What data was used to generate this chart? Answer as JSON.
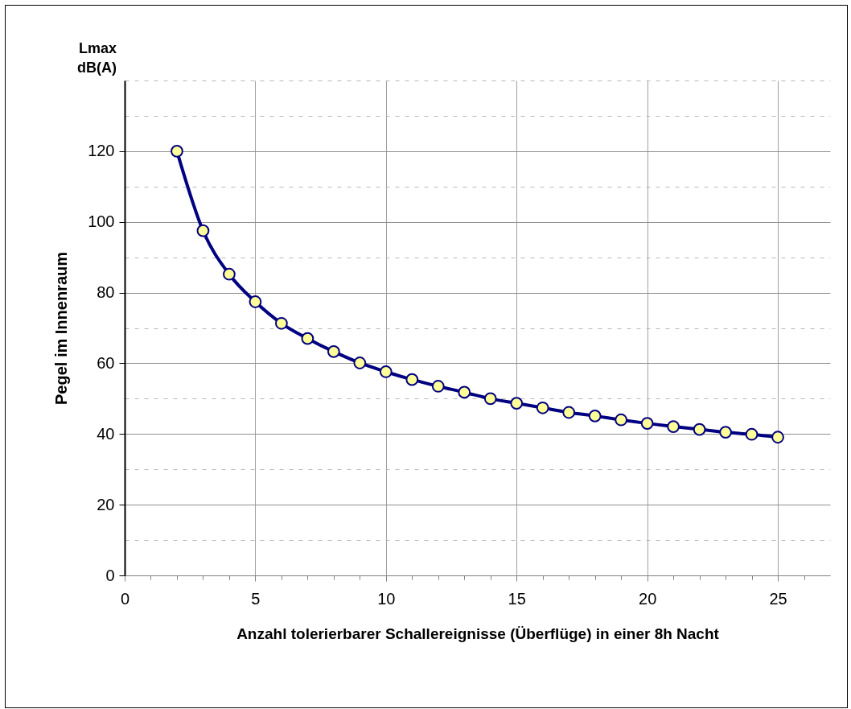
{
  "chart_data": {
    "type": "line",
    "xlabel": "Anzahl tolerierbarer Schallereignisse (Überflüge) in einer 8h Nacht",
    "ylabel": "Pegel im Innenraum",
    "annotations": [
      "Lmax",
      "dB(A)"
    ],
    "x": [
      2,
      3,
      4,
      5,
      6,
      7,
      8,
      9,
      10,
      11,
      12,
      13,
      14,
      15,
      16,
      17,
      18,
      19,
      20,
      21,
      22,
      23,
      24,
      25
    ],
    "series": [
      {
        "color": "#000080",
        "values": [
          120,
          97.5,
          85.2,
          77.4,
          71.3,
          67.0,
          63.3,
          60.1,
          57.6,
          55.4,
          53.5,
          51.8,
          50.0,
          48.7,
          47.4,
          46.1,
          45.1,
          44.0,
          43.0,
          42.1,
          41.3,
          40.5,
          39.9,
          39.1
        ]
      }
    ],
    "xlim": [
      0,
      27
    ],
    "xticks": [
      0,
      {
        "value": 1,
        "label": null
      },
      {
        "value": 2,
        "label": null
      },
      {
        "value": 3,
        "label": null
      },
      {
        "value": 4,
        "label": null
      },
      5,
      {
        "value": 6,
        "label": null
      },
      {
        "value": 7,
        "label": null
      },
      {
        "value": 8,
        "label": null
      },
      {
        "value": 9,
        "label": null
      },
      10,
      {
        "value": 11,
        "label": null
      },
      {
        "value": 12,
        "label": null
      },
      {
        "value": 13,
        "label": null
      },
      {
        "value": 14,
        "label": null
      },
      15,
      {
        "value": 16,
        "label": null
      },
      {
        "value": 17,
        "label": null
      },
      {
        "value": 18,
        "label": null
      },
      {
        "value": 19,
        "label": null
      },
      20,
      {
        "value": 21,
        "label": null
      },
      {
        "value": 22,
        "label": null
      },
      {
        "value": 23,
        "label": null
      },
      {
        "value": 24,
        "label": null
      },
      25,
      {
        "value": 26,
        "label": null
      }
    ],
    "ylim": [
      0,
      140
    ],
    "yticks": [
      0,
      {
        "value": 10,
        "label": null
      },
      20,
      {
        "value": 30,
        "label": null
      },
      40,
      {
        "value": 50,
        "label": null
      },
      60,
      {
        "value": 70,
        "label": null
      },
      80,
      {
        "value": 90,
        "label": null
      },
      100,
      {
        "value": 110,
        "label": null
      },
      120,
      {
        "value": 130,
        "label": null
      },
      {
        "value": 140,
        "label": null
      }
    ],
    "grid": true,
    "marker": "circle",
    "line_style": "solid",
    "legend": false
  }
}
